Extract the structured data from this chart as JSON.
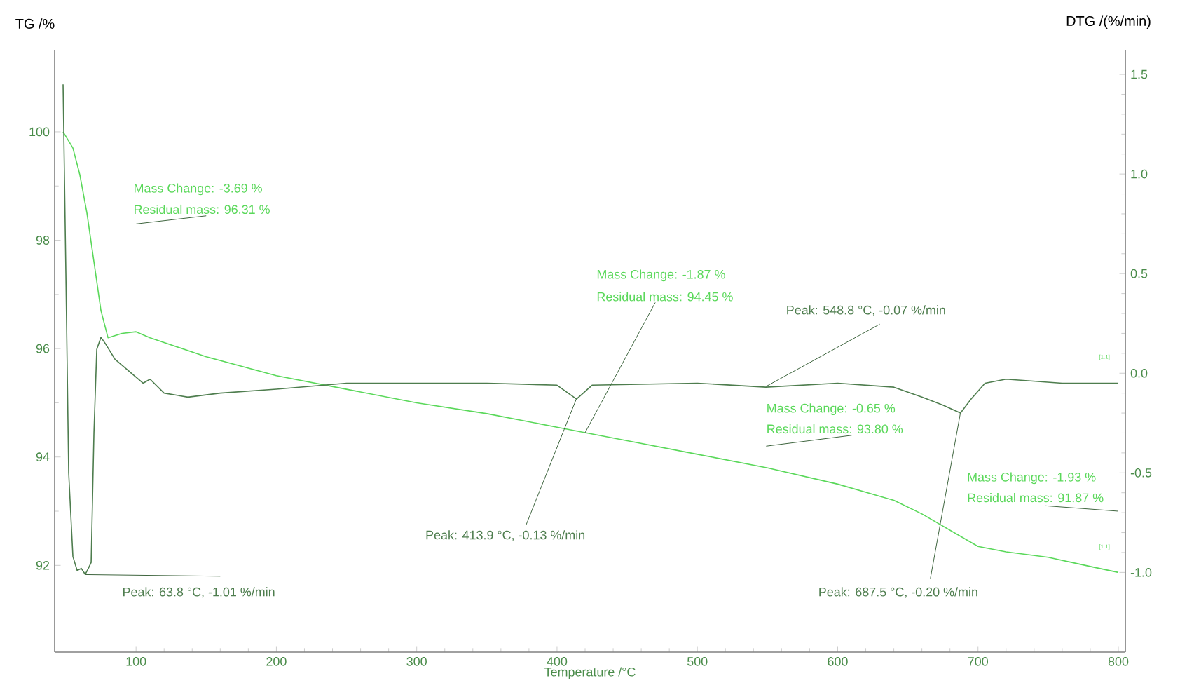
{
  "chart_data": {
    "type": "line",
    "xlabel": "Temperature /°C",
    "ylabel": "TG /%",
    "y2label": "DTG /(%/min)",
    "xlim": [
      42,
      805
    ],
    "ylim": [
      90.4,
      101.5
    ],
    "y2lim": [
      -1.4,
      1.62
    ],
    "xticks": [
      100,
      200,
      300,
      400,
      500,
      600,
      700,
      800
    ],
    "yticks": [
      92,
      94,
      96,
      98,
      100
    ],
    "y2ticks": [
      {
        "value": -1.0,
        "label": "-1.0"
      },
      {
        "value": -0.5,
        "label": "-0.5"
      },
      {
        "value": 0.0,
        "label": "0.0"
      },
      {
        "value": 0.5,
        "label": "0.5"
      },
      {
        "value": 1.0,
        "label": "1.0"
      },
      {
        "value": 1.5,
        "label": "1.5"
      }
    ],
    "grid": false,
    "marker": "none",
    "line_style": "solid",
    "series": [
      {
        "color": "#5ad85a",
        "x": [
          48,
          55,
          60,
          65,
          70,
          75,
          80,
          90,
          100,
          110,
          150,
          200,
          250,
          300,
          350,
          400,
          420,
          450,
          500,
          550,
          600,
          640,
          660,
          680,
          700,
          720,
          750,
          780,
          800
        ],
        "values": [
          100,
          99.7,
          99.2,
          98.5,
          97.6,
          96.7,
          96.2,
          96.28,
          96.31,
          96.2,
          95.85,
          95.5,
          95.25,
          95.0,
          94.8,
          94.55,
          94.45,
          94.3,
          94.05,
          93.8,
          93.5,
          93.2,
          92.95,
          92.65,
          92.35,
          92.25,
          92.15,
          91.98,
          91.87
        ]
      },
      {
        "color": "#4e7d4e",
        "axis": "y2",
        "x": [
          48,
          50,
          52,
          55,
          58,
          61,
          63.8,
          66,
          68,
          70,
          72,
          75,
          78,
          85,
          95,
          105,
          110,
          120,
          137,
          160,
          200,
          250,
          300,
          350,
          400,
          413.9,
          425,
          500,
          548.8,
          600,
          640,
          660,
          675,
          687.5,
          695,
          705,
          720,
          760,
          800
        ],
        "values": [
          1.45,
          0.5,
          -0.5,
          -0.92,
          -0.99,
          -0.98,
          -1.01,
          -0.98,
          -0.95,
          -0.3,
          0.12,
          0.18,
          0.15,
          0.07,
          0.01,
          -0.05,
          -0.03,
          -0.1,
          -0.12,
          -0.1,
          -0.08,
          -0.05,
          -0.05,
          -0.05,
          -0.06,
          -0.13,
          -0.06,
          -0.05,
          -0.07,
          -0.05,
          -0.07,
          -0.12,
          -0.16,
          -0.2,
          -0.13,
          -0.05,
          -0.03,
          -0.05,
          -0.05
        ]
      }
    ],
    "annotations": [
      "Mass Change:    -3.69 %",
      "Residual mass:  96.31 %",
      "Mass Change:    -1.87 %",
      {
        "text": "Residual mass:  94.45 %",
        "x": 420,
        "y": 94.45
      },
      {
        "text": "Peak: 548.8 °C, -0.07 %/min",
        "x": 548.8,
        "y": 95.3
      },
      "Mass Change:    -0.65 %",
      "Residual mass:  93.80 %",
      "Mass Change:    -1.93 %",
      "Residual mass:  91.87 %",
      {
        "text": "Peak: 413.9 °C, -0.13 %/min",
        "x": 413.9,
        "y": 95.08
      },
      {
        "text": "Peak: 63.8 °C, -1.01 %/min",
        "x": 63.8,
        "y": 91.83
      },
      {
        "text": "Peak: 687.5 °C, -0.20 %/min",
        "x": 687.5,
        "y": 94.82
      },
      "[1.1]",
      "[1.1]"
    ]
  }
}
